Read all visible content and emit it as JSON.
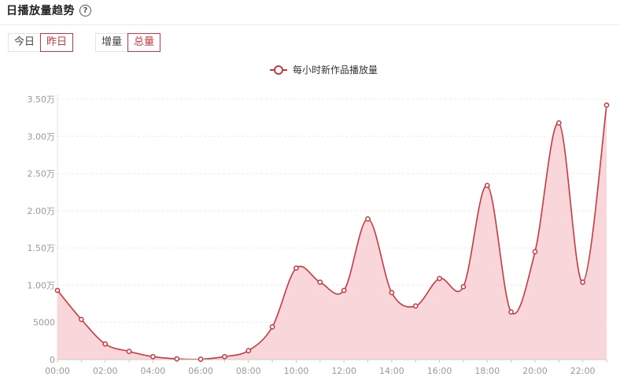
{
  "header": {
    "title": "日播放量趋势",
    "help_icon": "question-circle-icon"
  },
  "toggles": {
    "day": {
      "options": [
        "今日",
        "昨日"
      ],
      "active": 1
    },
    "mode": {
      "options": [
        "增量",
        "总量"
      ],
      "active": 1
    }
  },
  "colors": {
    "accent": "#c9393f",
    "fill": "#f8d2d5"
  },
  "chart_data": {
    "type": "area",
    "legend_position": "top-center",
    "grid": true,
    "series": [
      {
        "name": "每小时新作品播放量",
        "values": [
          9300,
          5400,
          2100,
          1100,
          400,
          100,
          50,
          400,
          1200,
          4400,
          12300,
          10400,
          9300,
          18900,
          9000,
          7200,
          10900,
          9800,
          23400,
          6400,
          14500,
          31800,
          10400,
          34200
        ]
      }
    ],
    "x": [
      "00:00",
      "01:00",
      "02:00",
      "03:00",
      "04:00",
      "05:00",
      "06:00",
      "07:00",
      "08:00",
      "09:00",
      "10:00",
      "11:00",
      "12:00",
      "13:00",
      "14:00",
      "15:00",
      "16:00",
      "17:00",
      "18:00",
      "19:00",
      "20:00",
      "21:00",
      "22:00",
      "23:00"
    ],
    "x_tick_labels": [
      "00:00",
      "02:00",
      "04:00",
      "06:00",
      "08:00",
      "10:00",
      "12:00",
      "14:00",
      "16:00",
      "18:00",
      "20:00",
      "22:00"
    ],
    "y_ticks": [
      0,
      5000,
      10000,
      15000,
      20000,
      25000,
      30000,
      35000
    ],
    "y_tick_labels": [
      "0",
      "5000",
      "1.00万",
      "1.50万",
      "2.00万",
      "2.50万",
      "3.00万",
      "3.50万"
    ],
    "ylim": [
      0,
      35000
    ]
  }
}
